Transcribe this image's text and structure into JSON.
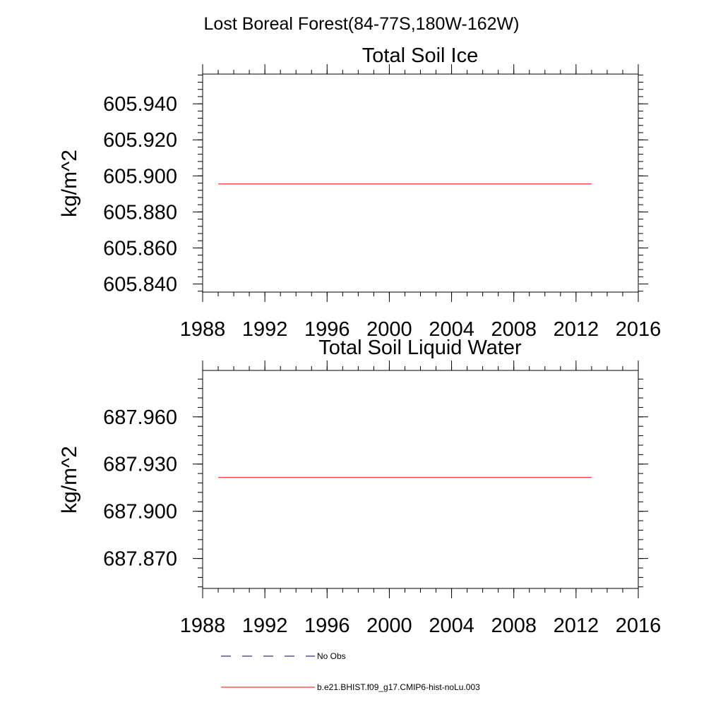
{
  "figure": {
    "title": "Lost Boreal Forest(84-77S,180W-162W)"
  },
  "chart_data": [
    {
      "type": "line",
      "title": "Total Soil Ice",
      "xlabel": "",
      "ylabel": "kg/m^2",
      "xlim": [
        1988,
        2016
      ],
      "ylim": [
        605.8355,
        605.9565
      ],
      "x_ticks": [
        1988,
        1992,
        1996,
        2000,
        2004,
        2008,
        2012,
        2016
      ],
      "x_tick_labels": [
        "1988",
        "1992",
        "1996",
        "2000",
        "2004",
        "2008",
        "2012",
        "2016"
      ],
      "y_ticks": [
        605.84,
        605.86,
        605.88,
        605.9,
        605.92,
        605.94
      ],
      "y_tick_labels": [
        "605.840",
        "605.860",
        "605.880",
        "605.900",
        "605.920",
        "605.940"
      ],
      "y_minor_step": 0.004,
      "x_minor_step": 1,
      "grid": false,
      "series": [
        {
          "name": "b.e21.BHIST.f09_g17.CMIP6-hist-noLu.003",
          "color": "#ff0000",
          "x": [
            1989,
            2013
          ],
          "y": [
            605.8955,
            605.8955
          ]
        }
      ]
    },
    {
      "type": "line",
      "title": "Total Soil Liquid Water",
      "xlabel": "",
      "ylabel": "kg/m^2",
      "xlim": [
        1988,
        2016
      ],
      "ylim": [
        687.851,
        687.9895
      ],
      "x_ticks": [
        1988,
        1992,
        1996,
        2000,
        2004,
        2008,
        2012,
        2016
      ],
      "x_tick_labels": [
        "1988",
        "1992",
        "1996",
        "2000",
        "2004",
        "2008",
        "2012",
        "2016"
      ],
      "y_ticks": [
        687.87,
        687.9,
        687.93,
        687.96
      ],
      "y_tick_labels": [
        "687.870",
        "687.900",
        "687.930",
        "687.960"
      ],
      "y_minor_step": 0.006,
      "x_minor_step": 1,
      "grid": false,
      "series": [
        {
          "name": "b.e21.BHIST.f09_g17.CMIP6-hist-noLu.003",
          "color": "#ff0000",
          "x": [
            1989,
            2013
          ],
          "y": [
            687.9215,
            687.9215
          ]
        }
      ]
    }
  ],
  "legend": {
    "placement": "bottom",
    "items": [
      {
        "label": "No Obs",
        "color": "#000066",
        "style": "dashed"
      },
      {
        "label": "b.e21.BHIST.f09_g17.CMIP6-hist-noLu.003",
        "color": "#ff0000",
        "style": "solid"
      }
    ]
  }
}
